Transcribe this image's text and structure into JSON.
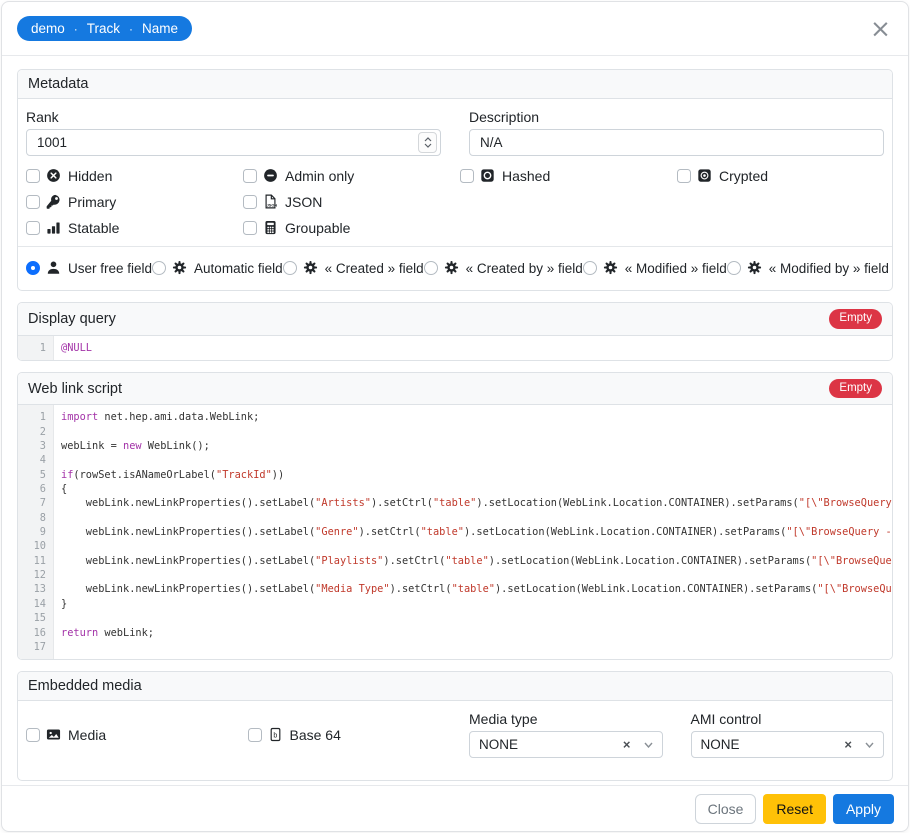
{
  "header": {
    "breadcrumb": {
      "parts": [
        "demo",
        "Track",
        "Name"
      ],
      "separator": "·"
    }
  },
  "metadata": {
    "title": "Metadata",
    "rank_label": "Rank",
    "rank_value": "1001",
    "description_label": "Description",
    "description_value": "N/A",
    "checkboxes": [
      {
        "label": "Hidden",
        "icon": "circle-xmark-icon",
        "checked": false,
        "row": 1,
        "col": 1
      },
      {
        "label": "Admin only",
        "icon": "circle-minus-icon",
        "checked": false,
        "row": 1,
        "col": 2
      },
      {
        "label": "Hashed",
        "icon": "hash-square-icon",
        "checked": false,
        "row": 1,
        "col": 3
      },
      {
        "label": "Crypted",
        "icon": "cipher-square-icon",
        "checked": false,
        "row": 1,
        "col": 4
      },
      {
        "label": "Primary",
        "icon": "key-icon",
        "checked": false,
        "row": 2,
        "col": 1
      },
      {
        "label": "JSON",
        "icon": "json-file-icon",
        "checked": false,
        "row": 2,
        "col": 2
      },
      {
        "label": "Statable",
        "icon": "bar-chart-icon",
        "checked": false,
        "row": 3,
        "col": 1
      },
      {
        "label": "Groupable",
        "icon": "calculator-icon",
        "checked": false,
        "row": 3,
        "col": 2
      }
    ],
    "radios": [
      {
        "label": "User free field",
        "icon": "user-icon",
        "selected": true
      },
      {
        "label": "Automatic field",
        "icon": "gear-icon",
        "selected": false
      },
      {
        "label": "« Created » field",
        "icon": "gear-icon",
        "selected": false
      },
      {
        "label": "« Created by » field",
        "icon": "gear-icon",
        "selected": false
      },
      {
        "label": "« Modified » field",
        "icon": "gear-icon",
        "selected": false
      },
      {
        "label": "« Modified by » field",
        "icon": "gear-icon",
        "selected": false
      }
    ]
  },
  "display_query": {
    "title": "Display query",
    "status_badge": "Empty",
    "lines": [
      {
        "num": "1",
        "tokens": [
          {
            "type": "keyword",
            "text": "@NULL"
          }
        ]
      }
    ]
  },
  "web_link_script": {
    "title": "Web link script",
    "status_badge": "Empty",
    "lines": [
      {
        "num": "1",
        "tokens": [
          {
            "type": "keyword",
            "text": "import"
          },
          {
            "type": "plain",
            "text": " net.hep.ami.data.WebLink;"
          }
        ]
      },
      {
        "num": "2",
        "tokens": []
      },
      {
        "num": "3",
        "tokens": [
          {
            "type": "plain",
            "text": "webLink = "
          },
          {
            "type": "keyword",
            "text": "new"
          },
          {
            "type": "plain",
            "text": " WebLink();"
          }
        ]
      },
      {
        "num": "4",
        "tokens": []
      },
      {
        "num": "5",
        "tokens": [
          {
            "type": "keyword",
            "text": "if"
          },
          {
            "type": "plain",
            "text": "(rowSet.isANameOrLabel("
          },
          {
            "type": "string",
            "text": "\"TrackId\""
          },
          {
            "type": "plain",
            "text": "))"
          }
        ]
      },
      {
        "num": "6",
        "tokens": [
          {
            "type": "plain",
            "text": "{"
          }
        ]
      },
      {
        "num": "7",
        "tokens": [
          {
            "type": "plain",
            "text": "    webLink.newLinkProperties().setLabel("
          },
          {
            "type": "string",
            "text": "\"Artists\""
          },
          {
            "type": "plain",
            "text": ").setCtrl("
          },
          {
            "type": "string",
            "text": "\"table\""
          },
          {
            "type": "plain",
            "text": ").setLocation(WebLink.Location.CONTAINER).setParams("
          },
          {
            "type": "string",
            "text": "\"[\\\"BrowseQuery -c"
          }
        ]
      },
      {
        "num": "8",
        "tokens": []
      },
      {
        "num": "9",
        "tokens": [
          {
            "type": "plain",
            "text": "    webLink.newLinkProperties().setLabel("
          },
          {
            "type": "string",
            "text": "\"Genre\""
          },
          {
            "type": "plain",
            "text": ").setCtrl("
          },
          {
            "type": "string",
            "text": "\"table\""
          },
          {
            "type": "plain",
            "text": ").setLocation(WebLink.Location.CONTAINER).setParams("
          },
          {
            "type": "string",
            "text": "\"[\\\"BrowseQuery -ca"
          }
        ]
      },
      {
        "num": "10",
        "tokens": []
      },
      {
        "num": "11",
        "tokens": [
          {
            "type": "plain",
            "text": "    webLink.newLinkProperties().setLabel("
          },
          {
            "type": "string",
            "text": "\"Playlists\""
          },
          {
            "type": "plain",
            "text": ").setCtrl("
          },
          {
            "type": "string",
            "text": "\"table\""
          },
          {
            "type": "plain",
            "text": ").setLocation(WebLink.Location.CONTAINER).setParams("
          },
          {
            "type": "string",
            "text": "\"[\\\"BrowseQuery"
          }
        ]
      },
      {
        "num": "12",
        "tokens": []
      },
      {
        "num": "13",
        "tokens": [
          {
            "type": "plain",
            "text": "    webLink.newLinkProperties().setLabel("
          },
          {
            "type": "string",
            "text": "\"Media Type\""
          },
          {
            "type": "plain",
            "text": ").setCtrl("
          },
          {
            "type": "string",
            "text": "\"table\""
          },
          {
            "type": "plain",
            "text": ").setLocation(WebLink.Location.CONTAINER).setParams("
          },
          {
            "type": "string",
            "text": "\"[\\\"BrowseQuer"
          }
        ]
      },
      {
        "num": "14",
        "tokens": [
          {
            "type": "plain",
            "text": "}"
          }
        ]
      },
      {
        "num": "15",
        "tokens": []
      },
      {
        "num": "16",
        "tokens": [
          {
            "type": "keyword",
            "text": "return"
          },
          {
            "type": "plain",
            "text": " webLink;"
          }
        ]
      },
      {
        "num": "17",
        "tokens": []
      }
    ]
  },
  "embedded_media": {
    "title": "Embedded media",
    "checkboxes": [
      {
        "label": "Media",
        "icon": "image-icon",
        "checked": false
      },
      {
        "label": "Base 64",
        "icon": "base64-icon",
        "checked": false
      }
    ],
    "media_type": {
      "label": "Media type",
      "value": "NONE",
      "clear_icon": "×"
    },
    "ami_control": {
      "label": "AMI control",
      "value": "NONE",
      "clear_icon": "×"
    }
  },
  "footer": {
    "close_label": "Close",
    "reset_label": "Reset",
    "apply_label": "Apply"
  },
  "colors": {
    "accent": "#1579e0",
    "danger": "#dc3545",
    "warning": "#ffc107",
    "code_keyword": "#a333a8",
    "code_string": "#c0392b"
  }
}
